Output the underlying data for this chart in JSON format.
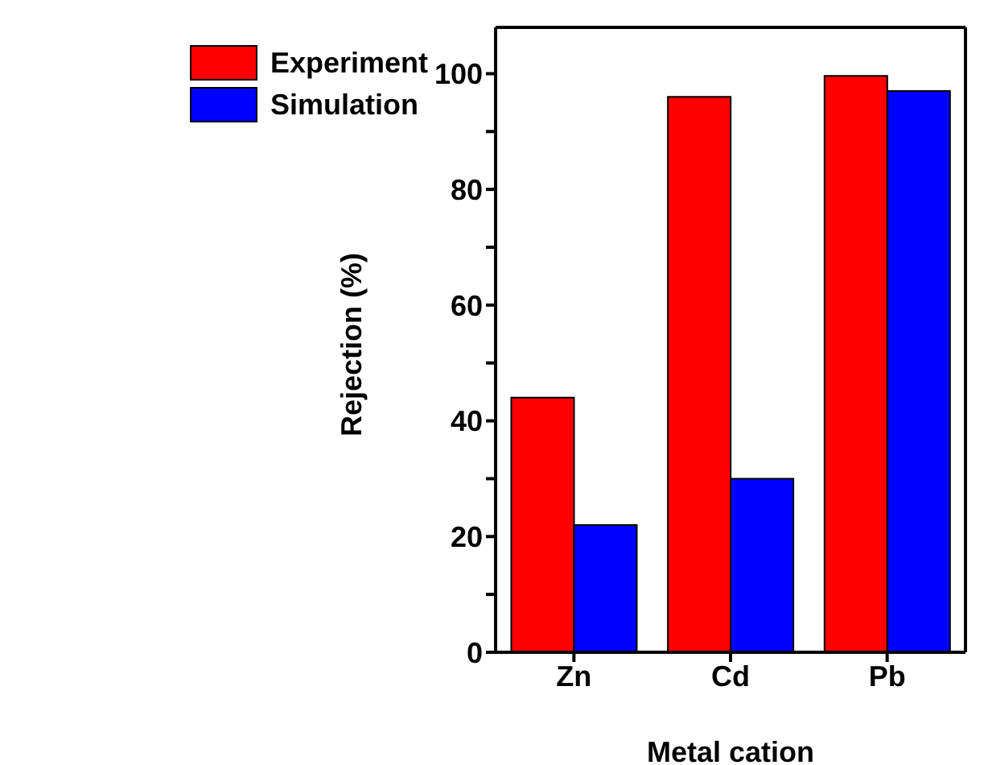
{
  "chart_data": {
    "type": "bar",
    "xlabel": "Metal cation",
    "ylabel": "Rejection (%)",
    "categories": [
      "Zn",
      "Cd",
      "Pb"
    ],
    "series": [
      {
        "name": "Experiment",
        "color": "#ff0000",
        "values": [
          44,
          96,
          99.6
        ]
      },
      {
        "name": "Simulation",
        "color": "#0000ff",
        "values": [
          22,
          30,
          97
        ]
      }
    ],
    "ylim": [
      0,
      108
    ],
    "yticks": [
      0,
      {
        "value": 10,
        "label": null
      },
      20,
      {
        "value": 30,
        "label": null
      },
      40,
      {
        "value": 50,
        "label": null
      },
      60,
      {
        "value": 70,
        "label": null
      },
      80,
      {
        "value": 90,
        "label": null
      },
      100
    ],
    "legend": "top left",
    "grid": false
  }
}
